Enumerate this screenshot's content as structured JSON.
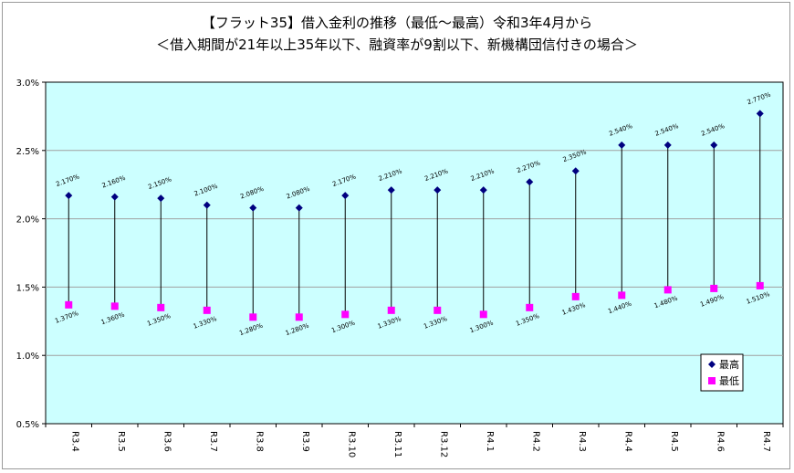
{
  "colors": {
    "plot_bg": "#ccffff",
    "high": "#000080",
    "low": "#ff00ff",
    "grid": "#a0a0a0"
  },
  "chart_data": {
    "type": "scatter",
    "title": "【フラット35】借入金利の推移（最低～最高）令和3年4月から",
    "subtitle": "＜借入期間が21年以上35年以下、融資率が9割以下、新機構団信付きの場合＞",
    "categories": [
      "R3.4",
      "R3.5",
      "R3.6",
      "R3.7",
      "R3.8",
      "R3.9",
      "R3.10",
      "R3.11",
      "R3.12",
      "R4.1",
      "R4.2",
      "R4.3",
      "R4.4",
      "R4.5",
      "R4.6",
      "R4.7"
    ],
    "series": [
      {
        "name": "最高",
        "values": [
          2.17,
          2.16,
          2.15,
          2.1,
          2.08,
          2.08,
          2.17,
          2.21,
          2.21,
          2.21,
          2.27,
          2.35,
          2.54,
          2.54,
          2.54,
          2.77
        ],
        "labels": [
          "2.170%",
          "2.160%",
          "2.150%",
          "2.100%",
          "2.080%",
          "2.080%",
          "2.170%",
          "2.210%",
          "2.210%",
          "2.210%",
          "2.270%",
          "2.350%",
          "2.540%",
          "2.540%",
          "2.540%",
          "2.770%"
        ]
      },
      {
        "name": "最低",
        "values": [
          1.37,
          1.36,
          1.35,
          1.33,
          1.28,
          1.28,
          1.3,
          1.33,
          1.33,
          1.3,
          1.35,
          1.43,
          1.44,
          1.48,
          1.49,
          1.51
        ],
        "labels": [
          "1.370%",
          "1.360%",
          "1.350%",
          "1.330%",
          "1.280%",
          "1.280%",
          "1.300%",
          "1.330%",
          "1.330%",
          "1.300%",
          "1.350%",
          "1.430%",
          "1.440%",
          "1.480%",
          "1.490%",
          "1.510%"
        ]
      }
    ],
    "ylim": [
      0.5,
      3.0
    ],
    "yticks": [
      0.5,
      1.0,
      1.5,
      2.0,
      2.5,
      3.0
    ],
    "ytick_labels": [
      "0.5%",
      "1.0%",
      "1.5%",
      "2.0%",
      "2.5%",
      "3.0%"
    ],
    "grid": true,
    "legend": "bottom-right"
  }
}
